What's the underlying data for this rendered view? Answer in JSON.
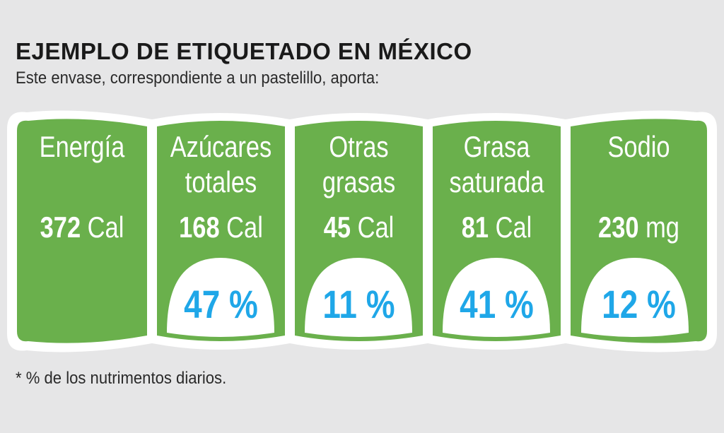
{
  "header": {
    "title": "EJEMPLO DE ETIQUETADO EN MÉXICO",
    "subtitle": "Este envase, correspondiente a un pastelillo, aporta:"
  },
  "colors": {
    "panel_green": "#6ab04c",
    "panel_border": "#ffffff",
    "percent_blue": "#1fa7e8",
    "background": "#e6e6e7"
  },
  "seals": [
    {
      "name": "Energía",
      "amount": "372",
      "unit": "Cal",
      "percent": ""
    },
    {
      "name": "Azúcares\ntotales",
      "amount": "168",
      "unit": "Cal",
      "percent": "47 %"
    },
    {
      "name": "Otras\ngrasas",
      "amount": "45",
      "unit": "Cal",
      "percent": "11 %"
    },
    {
      "name": "Grasa\nsaturada",
      "amount": "81",
      "unit": "Cal",
      "percent": "41 %"
    },
    {
      "name": "Sodio",
      "amount": "230",
      "unit": "mg",
      "percent": "12 %"
    }
  ],
  "footnote": "* % de los nutrimentos diarios."
}
